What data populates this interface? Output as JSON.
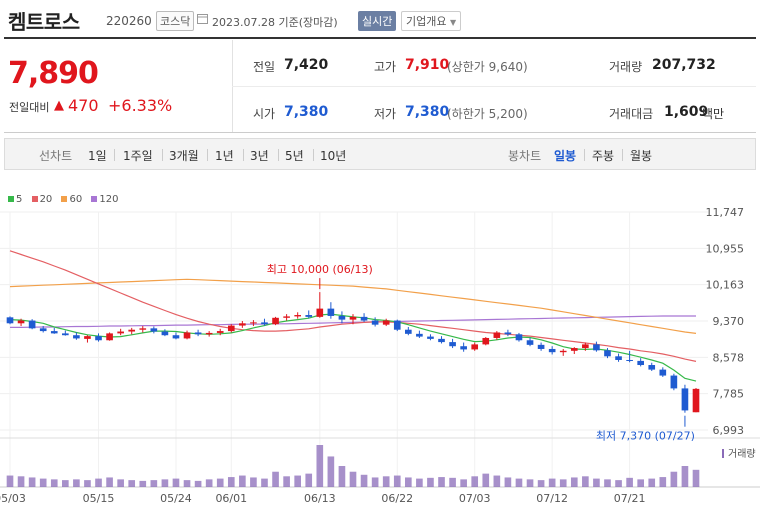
{
  "header": {
    "name": "켐트로스",
    "code": "220260",
    "market_tag": "코스닥",
    "ref_date": "2023.07.28 기준(장마감)",
    "realtime_label": "실시간",
    "company_label": "기업개요"
  },
  "quote": {
    "price": "7,890",
    "change_label": "전일대비",
    "change_arrow": "▲",
    "change_amount": "470",
    "change_pct": "+6.33%"
  },
  "stats": {
    "prev_close_label": "전일",
    "prev_close": "7,420",
    "high_label": "고가",
    "high": "7,910",
    "upper_limit": "(상한가 9,640)",
    "volume_label": "거래량",
    "volume": "207,732",
    "open_label": "시가",
    "open": "7,380",
    "low_label": "저가",
    "low": "7,380",
    "lower_limit": "(하한가 5,200)",
    "turnover_label": "거래대금",
    "turnover": "1,609",
    "turnover_unit": "백만"
  },
  "toolbar": {
    "line_chart_label": "선차트",
    "periods": [
      "1일",
      "1주일",
      "3개월",
      "1년",
      "3년",
      "5년",
      "10년"
    ],
    "candle_label": "봉차트",
    "candle_periods": [
      "일봉",
      "주봉",
      "월봉"
    ],
    "active_candle": "일봉"
  },
  "colors": {
    "up": "#e0161d",
    "down": "#1f5bd1",
    "ma5": "#36b94a",
    "ma20": "#e45f63",
    "ma60": "#f2a04a",
    "ma120": "#a876d4",
    "volume_bar": "#8a6bb8"
  },
  "chart_data": {
    "type": "candlestick",
    "legend": [
      "5",
      "20",
      "60",
      "120"
    ],
    "y_ticks": [
      11747,
      10955,
      10163,
      9370,
      8578,
      7785,
      6993
    ],
    "y_tick_labels": [
      "11,747",
      "10,955",
      "10,163",
      "9,370",
      "8,578",
      "7,785",
      "6,993"
    ],
    "ylim": [
      6993,
      11747
    ],
    "x_labels": [
      "05/03",
      "05/15",
      "05/24",
      "06/01",
      "06/13",
      "06/22",
      "07/03",
      "07/12",
      "07/21"
    ],
    "x_label_index": [
      0,
      8,
      15,
      20,
      28,
      35,
      42,
      49,
      56
    ],
    "annotation_high": "최고 10,000 (06/13)",
    "annotation_low": "최저 7,370 (07/27)",
    "volume_label": "거래량",
    "candles": [
      [
        9450,
        9470,
        9300,
        9320
      ],
      [
        9320,
        9420,
        9260,
        9380
      ],
      [
        9380,
        9410,
        9190,
        9210
      ],
      [
        9210,
        9260,
        9120,
        9150
      ],
      [
        9150,
        9220,
        9090,
        9100
      ],
      [
        9100,
        9160,
        9050,
        9060
      ],
      [
        9060,
        9120,
        8960,
        8990
      ],
      [
        8980,
        9060,
        8900,
        9040
      ],
      [
        9040,
        9100,
        8920,
        8950
      ],
      [
        8950,
        9120,
        8940,
        9100
      ],
      [
        9100,
        9200,
        9060,
        9140
      ],
      [
        9140,
        9220,
        9080,
        9180
      ],
      [
        9180,
        9260,
        9120,
        9210
      ],
      [
        9210,
        9250,
        9100,
        9140
      ],
      [
        9140,
        9190,
        9040,
        9060
      ],
      [
        9060,
        9120,
        8970,
        8990
      ],
      [
        8990,
        9160,
        8970,
        9120
      ],
      [
        9120,
        9180,
        9040,
        9080
      ],
      [
        9080,
        9150,
        9030,
        9110
      ],
      [
        9110,
        9200,
        9060,
        9150
      ],
      [
        9150,
        9300,
        9120,
        9270
      ],
      [
        9270,
        9370,
        9220,
        9320
      ],
      [
        9320,
        9390,
        9260,
        9340
      ],
      [
        9340,
        9420,
        9270,
        9300
      ],
      [
        9300,
        9460,
        9280,
        9440
      ],
      [
        9440,
        9520,
        9380,
        9470
      ],
      [
        9470,
        9560,
        9420,
        9500
      ],
      [
        9500,
        9600,
        9430,
        9460
      ],
      [
        9460,
        10000,
        9440,
        9640
      ],
      [
        9640,
        9780,
        9420,
        9480
      ],
      [
        9480,
        9580,
        9320,
        9400
      ],
      [
        9400,
        9520,
        9300,
        9460
      ],
      [
        9460,
        9540,
        9350,
        9380
      ],
      [
        9380,
        9450,
        9250,
        9290
      ],
      [
        9290,
        9420,
        9260,
        9380
      ],
      [
        9380,
        9400,
        9150,
        9180
      ],
      [
        9180,
        9240,
        9060,
        9090
      ],
      [
        9090,
        9160,
        9000,
        9030
      ],
      [
        9030,
        9080,
        8950,
        8980
      ],
      [
        8980,
        9040,
        8880,
        8910
      ],
      [
        8910,
        8980,
        8780,
        8820
      ],
      [
        8820,
        8900,
        8700,
        8750
      ],
      [
        8750,
        8900,
        8720,
        8860
      ],
      [
        8860,
        9020,
        8840,
        9000
      ],
      [
        9000,
        9150,
        8960,
        9120
      ],
      [
        9120,
        9180,
        9040,
        9080
      ],
      [
        9080,
        9110,
        8920,
        8950
      ],
      [
        8950,
        9000,
        8820,
        8850
      ],
      [
        8850,
        8900,
        8720,
        8760
      ],
      [
        8760,
        8820,
        8640,
        8690
      ],
      [
        8690,
        8760,
        8610,
        8720
      ],
      [
        8720,
        8800,
        8650,
        8780
      ],
      [
        8780,
        8900,
        8720,
        8860
      ],
      [
        8860,
        8920,
        8700,
        8730
      ],
      [
        8730,
        8780,
        8560,
        8600
      ],
      [
        8600,
        8660,
        8480,
        8520
      ],
      [
        8520,
        8720,
        8470,
        8500
      ],
      [
        8500,
        8560,
        8380,
        8410
      ],
      [
        8410,
        8460,
        8280,
        8310
      ],
      [
        8310,
        8360,
        8150,
        8180
      ],
      [
        8180,
        8220,
        7860,
        7900
      ],
      [
        7900,
        7980,
        7370,
        7420
      ],
      [
        7380,
        7910,
        7380,
        7890
      ]
    ],
    "volume": [
      30,
      28,
      25,
      22,
      20,
      18,
      20,
      18,
      22,
      25,
      20,
      18,
      16,
      18,
      20,
      22,
      18,
      16,
      20,
      22,
      26,
      30,
      25,
      22,
      40,
      28,
      30,
      35,
      110,
      80,
      55,
      40,
      32,
      25,
      28,
      30,
      25,
      22,
      24,
      26,
      24,
      20,
      28,
      35,
      30,
      25,
      22,
      20,
      18,
      22,
      20,
      25,
      28,
      22,
      20,
      18,
      24,
      20,
      22,
      26,
      40,
      55,
      45
    ],
    "ma5": [
      9400,
      9390,
      9360,
      9320,
      9240,
      9180,
      9120,
      9070,
      9040,
      9020,
      9030,
      9070,
      9110,
      9150,
      9150,
      9140,
      9110,
      9090,
      9080,
      9090,
      9110,
      9160,
      9220,
      9270,
      9330,
      9370,
      9400,
      9430,
      9500,
      9520,
      9490,
      9460,
      9440,
      9400,
      9380,
      9350,
      9290,
      9220,
      9150,
      9090,
      9030,
      8970,
      8920,
      8930,
      8960,
      9000,
      9020,
      9010,
      8960,
      8890,
      8810,
      8760,
      8750,
      8760,
      8730,
      8690,
      8640,
      8580,
      8520,
      8450,
      8300,
      8120,
      8060
    ],
    "ma20": [
      10900,
      10820,
      10740,
      10660,
      10570,
      10480,
      10380,
      10280,
      10180,
      10080,
      9980,
      9880,
      9780,
      9690,
      9600,
      9510,
      9430,
      9360,
      9300,
      9250,
      9210,
      9180,
      9160,
      9150,
      9150,
      9160,
      9180,
      9200,
      9240,
      9270,
      9300,
      9320,
      9340,
      9350,
      9350,
      9340,
      9320,
      9300,
      9270,
      9240,
      9210,
      9180,
      9150,
      9120,
      9100,
      9080,
      9060,
      9040,
      9010,
      8980,
      8950,
      8920,
      8890,
      8860,
      8830,
      8790,
      8760,
      8720,
      8690,
      8650,
      8600,
      8540,
      8490
    ],
    "ma60": [
      10120,
      10130,
      10140,
      10150,
      10160,
      10170,
      10180,
      10190,
      10200,
      10210,
      10220,
      10230,
      10240,
      10250,
      10260,
      10270,
      10280,
      10270,
      10260,
      10250,
      10240,
      10230,
      10220,
      10210,
      10200,
      10190,
      10180,
      10170,
      10160,
      10150,
      10140,
      10130,
      10110,
      10090,
      10070,
      10040,
      10010,
      9980,
      9950,
      9920,
      9890,
      9860,
      9830,
      9800,
      9770,
      9740,
      9710,
      9680,
      9650,
      9610,
      9570,
      9530,
      9490,
      9450,
      9410,
      9370,
      9330,
      9290,
      9250,
      9210,
      9170,
      9130,
      9100
    ],
    "ma120": [
      9230,
      9230,
      9235,
      9240,
      9240,
      9245,
      9250,
      9250,
      9255,
      9260,
      9260,
      9265,
      9270,
      9270,
      9275,
      9280,
      9280,
      9285,
      9290,
      9290,
      9295,
      9300,
      9300,
      9305,
      9310,
      9310,
      9315,
      9320,
      9325,
      9330,
      9335,
      9340,
      9345,
      9350,
      9355,
      9360,
      9365,
      9370,
      9375,
      9380,
      9385,
      9390,
      9395,
      9400,
      9405,
      9410,
      9415,
      9420,
      9425,
      9430,
      9435,
      9440,
      9445,
      9450,
      9455,
      9460,
      9465,
      9470,
      9475,
      9480,
      9480,
      9480,
      9480
    ]
  }
}
